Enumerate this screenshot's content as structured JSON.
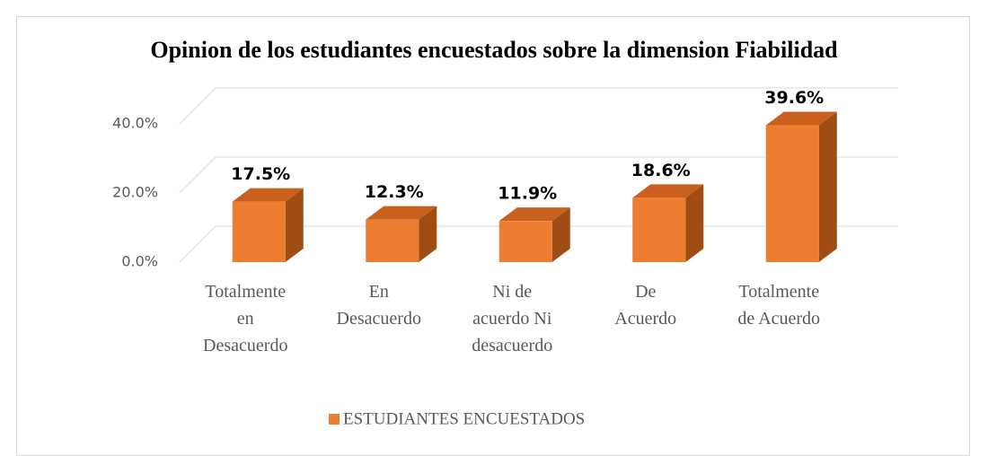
{
  "chart_data": {
    "type": "bar3d",
    "title": "Opinion de los estudiantes encuestados sobre la dimension Fiabilidad",
    "categories": [
      "Totalmente en Desacuerdo",
      "En Desacuerdo",
      "Ni de acuerdo Ni desacuerdo",
      "De Acuerdo",
      "Totalmente de Acuerdo"
    ],
    "series": [
      {
        "name": "ESTUDIANTES ENCUESTADOS",
        "color": "#ed7d31",
        "values": [
          17.5,
          12.3,
          11.9,
          18.6,
          39.6
        ],
        "value_labels": [
          "17.5%",
          "12.3%",
          "11.9%",
          "18.6%",
          "39.6%"
        ]
      }
    ],
    "ylim": [
      0,
      40
    ],
    "yticks": [
      {
        "value": 0,
        "label": "0.0%"
      },
      {
        "value": 20,
        "label": "20.0%"
      },
      {
        "value": 40,
        "label": "40.0%"
      }
    ],
    "grid": true,
    "legend": "bottom"
  }
}
